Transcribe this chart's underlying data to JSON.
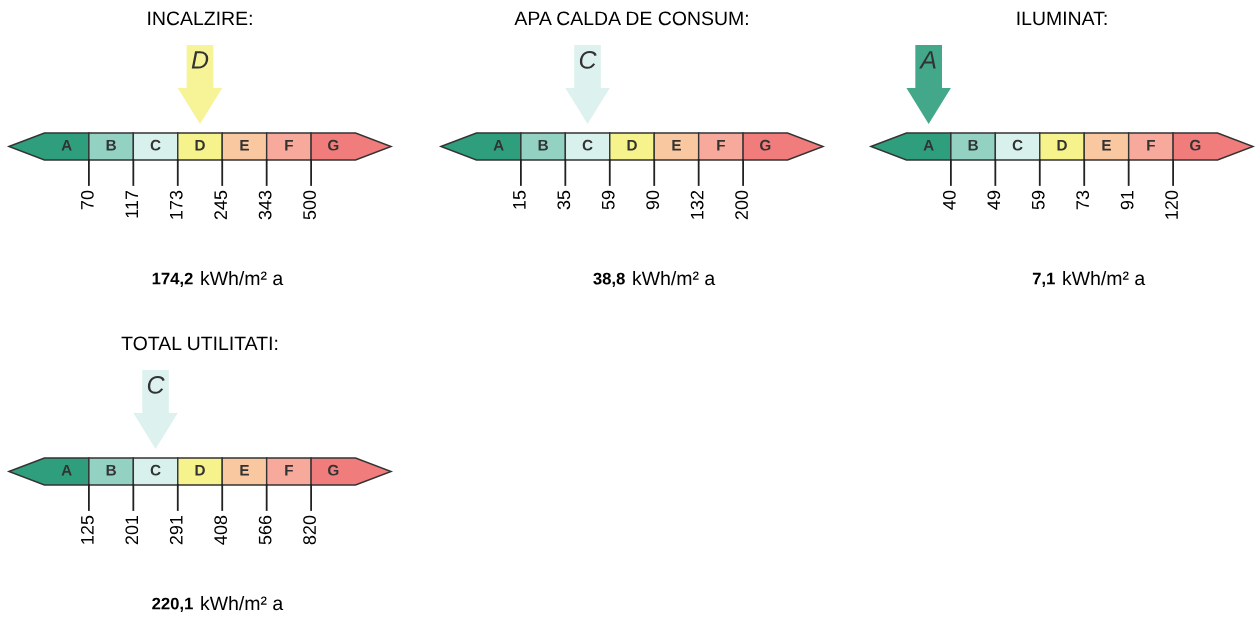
{
  "chart_data": [
    {
      "type": "other",
      "title": "INCALZIRE:",
      "categories": [
        "A",
        "B",
        "C",
        "D",
        "E",
        "F",
        "G"
      ],
      "colors": [
        "#2f9e7c",
        "#93d2c2",
        "#d9f1ec",
        "#f6f28c",
        "#f9c7a0",
        "#f7aa9c",
        "#f07c7c"
      ],
      "values": [
        70,
        117,
        173,
        245,
        343,
        500,
        null
      ],
      "data_labels": true,
      "needle": "D",
      "annotations": [
        "174,2",
        "kWh/m² a"
      ]
    },
    {
      "type": "other",
      "title": "APA CALDA DE CONSUM:",
      "categories": [
        "A",
        "B",
        "C",
        "D",
        "E",
        "F",
        "G"
      ],
      "colors": [
        "#2f9e7c",
        "#93d2c2",
        "#d9f1ec",
        "#f6f28c",
        "#f9c7a0",
        "#f7aa9c",
        "#f07c7c"
      ],
      "values": [
        15,
        35,
        59,
        90,
        132,
        200,
        null
      ],
      "data_labels": true,
      "needle": "C",
      "annotations": [
        "38,8",
        "kWh/m² a"
      ]
    },
    {
      "type": "other",
      "title": "ILUMINAT:",
      "categories": [
        "A",
        "B",
        "C",
        "D",
        "E",
        "F",
        "G"
      ],
      "colors": [
        "#2f9e7c",
        "#93d2c2",
        "#d9f1ec",
        "#f6f28c",
        "#f9c7a0",
        "#f7aa9c",
        "#f07c7c"
      ],
      "values": [
        40,
        49,
        59,
        73,
        91,
        120,
        null
      ],
      "data_labels": true,
      "needle": "A",
      "annotations": [
        "7,1",
        "kWh/m² a"
      ]
    },
    {
      "type": "other",
      "title": "TOTAL UTILITATI:",
      "categories": [
        "A",
        "B",
        "C",
        "D",
        "E",
        "F",
        "G"
      ],
      "colors": [
        "#2f9e7c",
        "#93d2c2",
        "#d9f1ec",
        "#f6f28c",
        "#f9c7a0",
        "#f7aa9c",
        "#f07c7c"
      ],
      "values": [
        125,
        201,
        291,
        408,
        566,
        820,
        null
      ],
      "data_labels": true,
      "needle": "C",
      "annotations": [
        "220,1",
        "kWh/m² a"
      ]
    }
  ]
}
